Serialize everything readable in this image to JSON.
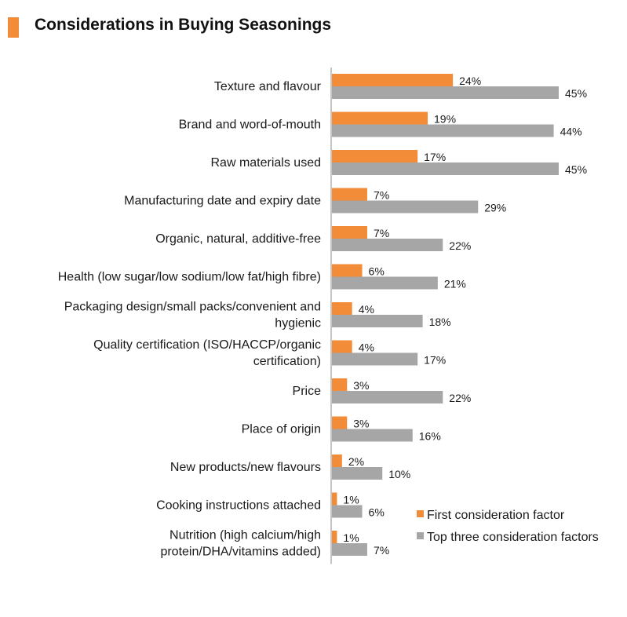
{
  "colors": {
    "accent": "#F28C38",
    "primary": "#F28C38",
    "secondary": "#A6A6A6",
    "axis": "#888888"
  },
  "chart_data": {
    "type": "bar",
    "orientation": "horizontal",
    "title": "Considerations in Buying Seasonings",
    "categories": [
      [
        "Texture and flavour"
      ],
      [
        "Brand and word-of-mouth"
      ],
      [
        "Raw materials used"
      ],
      [
        "Manufacturing date and expiry date"
      ],
      [
        "Organic, natural, additive-free"
      ],
      [
        "Health (low sugar/low sodium/low fat/high fibre)"
      ],
      [
        "Packaging design/small packs/convenient and",
        "hygienic"
      ],
      [
        "Quality certification (ISO/HACCP/organic",
        "certification)"
      ],
      [
        "Price"
      ],
      [
        "Place of origin"
      ],
      [
        "New products/new flavours"
      ],
      [
        "Cooking instructions attached"
      ],
      [
        "Nutrition (high calcium/high",
        "protein/DHA/vitamins added)"
      ]
    ],
    "series": [
      {
        "name": "First consideration factor",
        "color": "#F28C38",
        "values": [
          24,
          19,
          17,
          7,
          7,
          6,
          4,
          4,
          3,
          3,
          2,
          1,
          1
        ]
      },
      {
        "name": "Top three consideration factors",
        "color": "#A6A6A6",
        "values": [
          45,
          44,
          45,
          29,
          22,
          21,
          18,
          17,
          22,
          16,
          10,
          6,
          7
        ]
      }
    ],
    "value_suffix": "%",
    "xlim": [
      0,
      55
    ],
    "legend_position": "bottom-right",
    "grid": false
  }
}
